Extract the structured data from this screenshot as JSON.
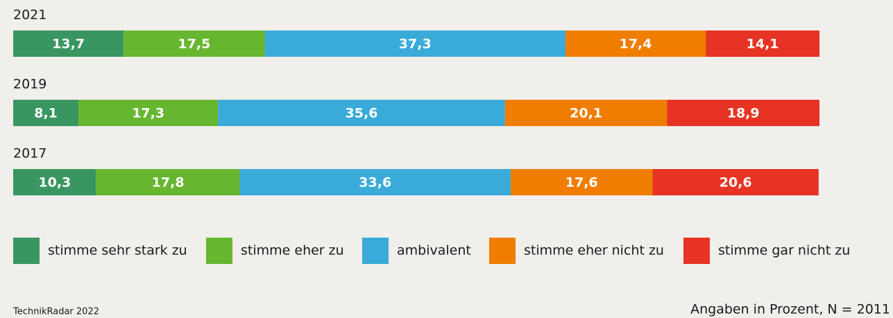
{
  "chart_data": {
    "type": "stacked-barh",
    "categories": [
      "2021",
      "2019",
      "2017"
    ],
    "xlim": [
      0,
      100
    ],
    "series": [
      {
        "name": "stimme sehr stark zu",
        "color": "#3a9660",
        "values": [
          13.7,
          8.1,
          10.3
        ],
        "value_labels": [
          "13,7",
          "8,1",
          "10,3"
        ]
      },
      {
        "name": "stimme eher zu",
        "color": "#67b630",
        "values": [
          17.5,
          17.3,
          17.8
        ],
        "value_labels": [
          "17,5",
          "17,3",
          "17,8"
        ]
      },
      {
        "name": "ambivalent",
        "color": "#3aabd8",
        "values": [
          37.3,
          35.6,
          33.6
        ],
        "value_labels": [
          "37,3",
          "35,6",
          "33,6"
        ]
      },
      {
        "name": "stimme eher nicht zu",
        "color": "#f07d00",
        "values": [
          17.4,
          20.1,
          17.6
        ],
        "value_labels": [
          "17,4",
          "20,1",
          "17,6"
        ]
      },
      {
        "name": "stimme gar nicht zu",
        "color": "#e63323",
        "values": [
          14.1,
          18.9,
          20.6
        ],
        "value_labels": [
          "14,1",
          "18,9",
          "20,6"
        ]
      }
    ],
    "legend": "bottom",
    "source": "TechnikRadar 2022",
    "note": "Angaben in Prozent, N = 2011"
  }
}
